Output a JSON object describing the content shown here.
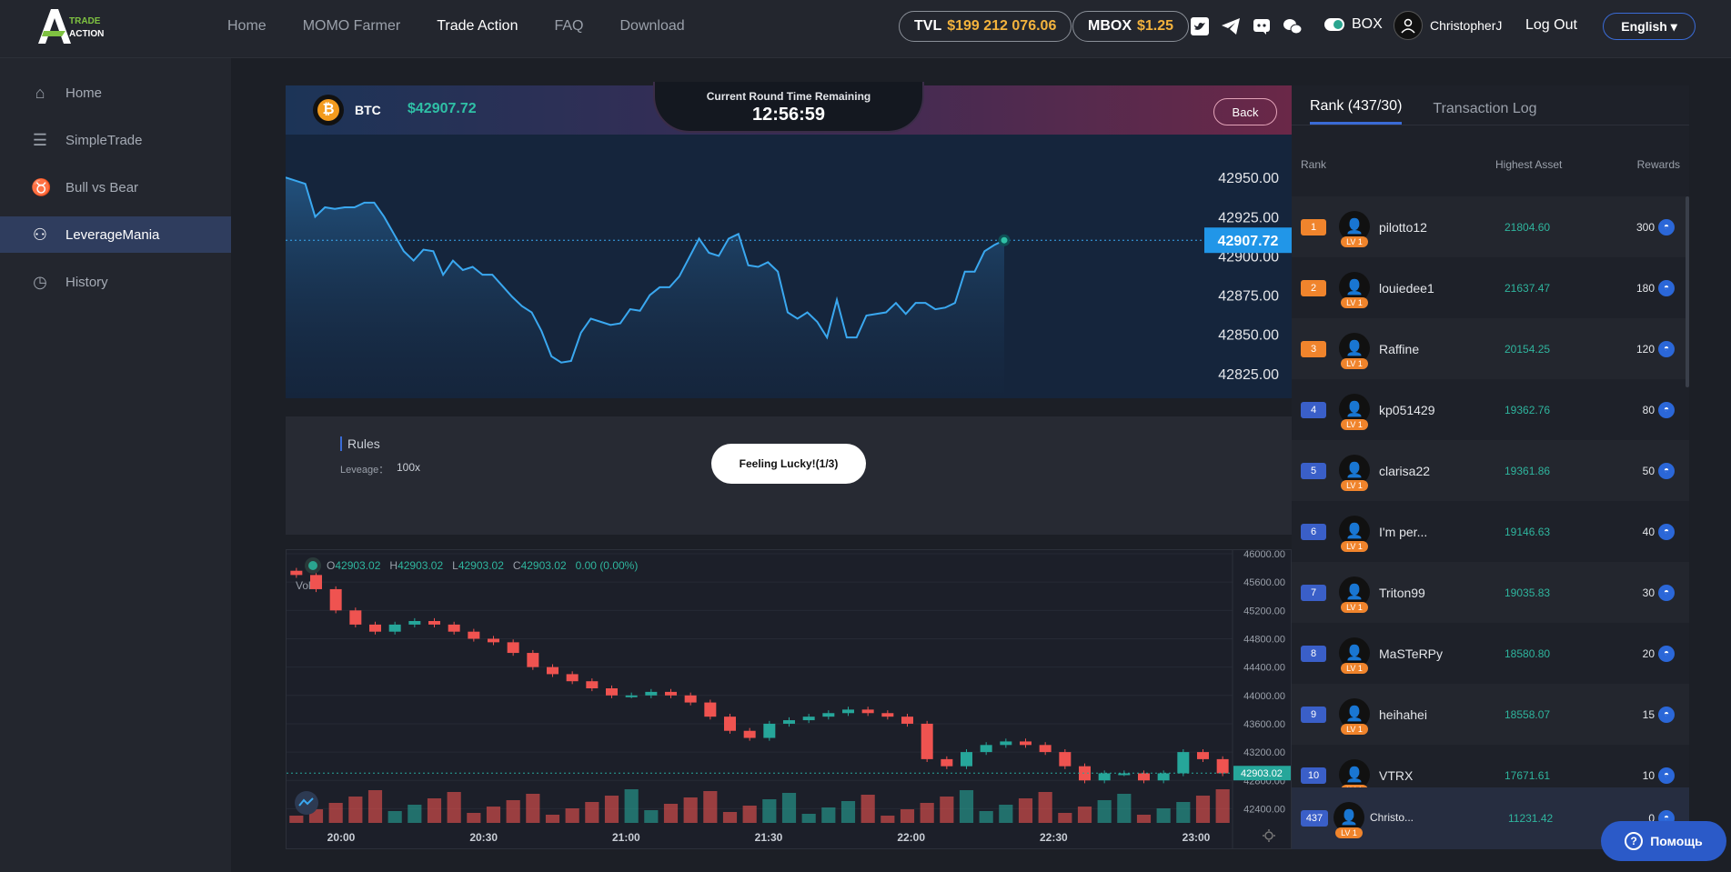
{
  "brand": {
    "logo_line1": "TRADE",
    "logo_line2": "ACTION"
  },
  "nav": {
    "items": [
      "Home",
      "MOMO Farmer",
      "Trade Action",
      "FAQ",
      "Download"
    ],
    "active": "Trade Action"
  },
  "tvl": {
    "label": "TVL",
    "value": "$199 212 076.06"
  },
  "mbox": {
    "label": "MBOX",
    "value": "$1.25"
  },
  "social_icons": [
    "twitter-icon",
    "telegram-icon",
    "discord-icon",
    "wechat-icon"
  ],
  "box": {
    "label": "BOX"
  },
  "user": {
    "name": "ChristopherJ",
    "logout": "Log Out",
    "language": "English ▾"
  },
  "sidebar": {
    "items": [
      {
        "label": "Home",
        "icon": "home-icon",
        "glyph": "⌂"
      },
      {
        "label": "SimpleTrade",
        "icon": "coins-icon",
        "glyph": "☰"
      },
      {
        "label": "Bull vs Bear",
        "icon": "bull-icon",
        "glyph": "♉"
      },
      {
        "label": "LeverageMania",
        "icon": "leverage-icon",
        "glyph": "⚇"
      },
      {
        "label": "History",
        "icon": "clock-icon",
        "glyph": "◷"
      }
    ],
    "active_index": 3
  },
  "trade": {
    "symbol": "BTC",
    "price": "$42907.72",
    "round_label": "Current Round Time Remaining",
    "round_time": "12:56:59",
    "back": "Back",
    "rules_title": "Rules",
    "leverage_label": "Leveage：",
    "leverage_value": "100x",
    "lucky_button": "Feeling Lucky!(1/3)"
  },
  "ohlc": {
    "o_label": "O",
    "o": "42903.02",
    "h_label": "H",
    "h": "42903.02",
    "l_label": "L",
    "l": "42903.02",
    "c_label": "C",
    "c": "42903.02",
    "change": "0.00 (0.00%)",
    "vol_label": "Vol"
  },
  "chart_data": [
    {
      "type": "line",
      "title": "",
      "y_ticks": [
        "42950.00",
        "42925.00",
        "42900.00",
        "42875.00",
        "42850.00",
        "42825.00"
      ],
      "current_label": "42907.72",
      "ylim": [
        42815,
        42960
      ],
      "values": [
        42950,
        42948,
        42946,
        42925,
        42931,
        42930,
        42931,
        42931,
        42934,
        42934,
        42925,
        42914,
        42903,
        42897,
        42904,
        42903,
        42888,
        42897,
        42891,
        42893,
        42888,
        42888,
        42881,
        42874,
        42868,
        42864,
        42852,
        42836,
        42832,
        42833,
        42851,
        42860,
        42858,
        42856,
        42857,
        42866,
        42865,
        42875,
        42880,
        42880,
        42887,
        42899,
        42911,
        42902,
        42900,
        42911,
        42914,
        42894,
        42893,
        42896,
        42890,
        42864,
        42860,
        42864,
        42858,
        42848,
        42872,
        42848,
        42848,
        42862,
        42863,
        42864,
        42870,
        42863,
        42870,
        42870,
        42866,
        42867,
        42870,
        42890,
        42890,
        42903,
        42907,
        42910
      ]
    },
    {
      "type": "bar",
      "title": "",
      "y_ticks": [
        "46000.00",
        "45600.00",
        "45200.00",
        "44800.00",
        "44400.00",
        "44000.00",
        "43600.00",
        "43200.00",
        "42800.00",
        "42400.00"
      ],
      "x_ticks": [
        "20:00",
        "20:30",
        "21:00",
        "21:30",
        "22:00",
        "22:30",
        "23:00"
      ],
      "current_label": "42903.02",
      "ylim": [
        42200,
        46000
      ],
      "close_values": [
        45700,
        45500,
        45200,
        45000,
        44900,
        45000,
        45050,
        45000,
        44900,
        44800,
        44750,
        44600,
        44400,
        44300,
        44200,
        44100,
        44000,
        44000,
        44050,
        44000,
        43900,
        43700,
        43500,
        43400,
        43600,
        43650,
        43700,
        43750,
        43800,
        43750,
        43700,
        43600,
        43100,
        43000,
        43200,
        43300,
        43350,
        43300,
        43200,
        43000,
        42800,
        42900,
        42900,
        42800,
        42900,
        43200,
        43100,
        42900
      ]
    }
  ],
  "leaderboard": {
    "tabs": [
      "Rank (437/30)",
      "Transaction Log"
    ],
    "columns": [
      "Rank",
      "Highest Asset",
      "Rewards"
    ],
    "rows": [
      {
        "rank": "1",
        "name": "pilotto12",
        "asset": "21804.60",
        "reward": "300",
        "level": "LV 1",
        "badge": "#f0842c"
      },
      {
        "rank": "2",
        "name": "louiedee1",
        "asset": "21637.47",
        "reward": "180",
        "level": "LV 1",
        "badge": "#f0842c"
      },
      {
        "rank": "3",
        "name": "Raffine",
        "asset": "20154.25",
        "reward": "120",
        "level": "LV 1",
        "badge": "#f0842c"
      },
      {
        "rank": "4",
        "name": "kp051429",
        "asset": "19362.76",
        "reward": "80",
        "level": "LV 1",
        "badge": "#3a5fc8"
      },
      {
        "rank": "5",
        "name": "clarisa22",
        "asset": "19361.86",
        "reward": "50",
        "level": "LV 1",
        "badge": "#3a5fc8"
      },
      {
        "rank": "6",
        "name": "I'm per...",
        "asset": "19146.63",
        "reward": "40",
        "level": "LV 1",
        "badge": "#3a5fc8"
      },
      {
        "rank": "7",
        "name": "Triton99",
        "asset": "19035.83",
        "reward": "30",
        "level": "LV 1",
        "badge": "#3a5fc8"
      },
      {
        "rank": "8",
        "name": "MaSTeRPy",
        "asset": "18580.80",
        "reward": "20",
        "level": "LV 1",
        "badge": "#3a5fc8"
      },
      {
        "rank": "9",
        "name": "heihahei",
        "asset": "18558.07",
        "reward": "15",
        "level": "LV 1",
        "badge": "#3a5fc8"
      },
      {
        "rank": "10",
        "name": "VTRX",
        "asset": "17671.61",
        "reward": "10",
        "level": "LV 1",
        "badge": "#3a5fc8"
      }
    ],
    "me": {
      "rank": "437",
      "name": "Christo...",
      "asset": "11231.42",
      "reward": "0",
      "level": "LV 1"
    }
  },
  "help": {
    "label": "Помощь"
  },
  "colors": {
    "up": "#26a69a",
    "down": "#ef5350",
    "line": "#3aa8f0",
    "accent": "#3a6bd6"
  }
}
